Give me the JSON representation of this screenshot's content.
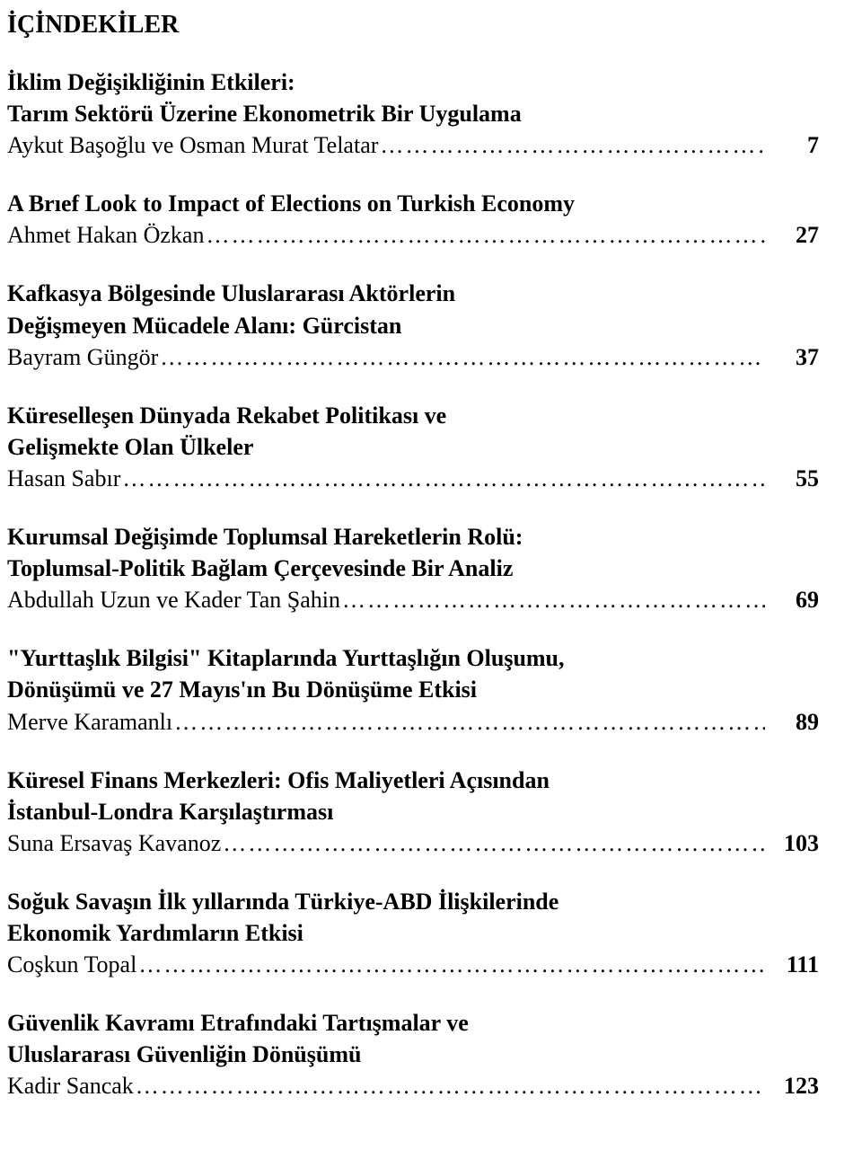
{
  "heading": "İÇİNDEKİLER",
  "typography": {
    "font_family": "Palatino Linotype / Book Antiqua serif",
    "title_fontsize_pt": 21,
    "title_fontweight": "bold",
    "author_fontweight": "normal",
    "pagenum_fontweight": "bold",
    "text_color": "#000000",
    "background_color": "#ffffff",
    "leader_char": "…"
  },
  "entries": [
    {
      "title_lines": [
        "İklim Değişikliğinin Etkileri:",
        "Tarım Sektörü Üzerine Ekonometrik Bir Uygulama"
      ],
      "author": "Aykut Başoğlu ve Osman Murat Telatar",
      "page": "7"
    },
    {
      "title_lines": [
        "A Brıef Look to Impact of Elections on Turkish Economy"
      ],
      "author": "Ahmet Hakan Özkan",
      "page": "27"
    },
    {
      "title_lines": [
        "Kafkasya Bölgesinde Uluslararası Aktörlerin",
        "Değişmeyen Mücadele Alanı: Gürcistan"
      ],
      "author": "Bayram Güngör",
      "page": "37"
    },
    {
      "title_lines": [
        "Küreselleşen Dünyada Rekabet Politikası ve",
        "Gelişmekte Olan Ülkeler"
      ],
      "author": "Hasan Sabır",
      "page": "55"
    },
    {
      "title_lines": [
        "Kurumsal Değişimde Toplumsal Hareketlerin Rolü:",
        "Toplumsal-Politik Bağlam Çerçevesinde Bir Analiz"
      ],
      "author": "Abdullah Uzun ve Kader Tan Şahin",
      "page": "69"
    },
    {
      "title_lines": [
        "\"Yurttaşlık Bilgisi\" Kitaplarında Yurttaşlığın Oluşumu,",
        "Dönüşümü ve 27 Mayıs'ın Bu Dönüşüme Etkisi"
      ],
      "author": "Merve Karamanlı",
      "page": "89"
    },
    {
      "title_lines": [
        "Küresel Finans Merkezleri: Ofis Maliyetleri Açısından",
        "İstanbul-Londra Karşılaştırması"
      ],
      "author": "Suna Ersavaş Kavanoz",
      "page": "103"
    },
    {
      "title_lines": [
        "Soğuk Savaşın İlk yıllarında Türkiye-ABD İlişkilerinde",
        "Ekonomik Yardımların Etkisi"
      ],
      "author": "Coşkun Topal",
      "page": "111"
    },
    {
      "title_lines": [
        "Güvenlik Kavramı Etrafındaki Tartışmalar ve",
        "Uluslararası Güvenliğin Dönüşümü"
      ],
      "author": "Kadir Sancak",
      "page": "123"
    }
  ]
}
